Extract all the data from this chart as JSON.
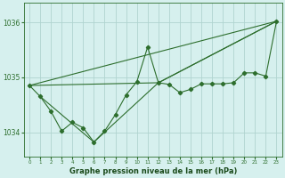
{
  "title": "Graphe pression niveau de la mer (hPa)",
  "background_color": "#d6f0ee",
  "grid_color": "#b0d4d0",
  "line_color": "#2d6e2d",
  "xlim": [
    -0.5,
    23.5
  ],
  "ylim": [
    1033.55,
    1036.35
  ],
  "yticks": [
    1034,
    1035,
    1036
  ],
  "xticks": [
    0,
    1,
    2,
    3,
    4,
    5,
    6,
    7,
    8,
    9,
    10,
    11,
    12,
    13,
    14,
    15,
    16,
    17,
    18,
    19,
    20,
    21,
    22,
    23
  ],
  "series_main": {
    "x": [
      0,
      1,
      2,
      3,
      4,
      5,
      6,
      7,
      8,
      9,
      10,
      11,
      12,
      13,
      14,
      15,
      16,
      17,
      18,
      19,
      20,
      21,
      22,
      23
    ],
    "y": [
      1034.85,
      1034.65,
      1034.38,
      1034.02,
      1034.18,
      1034.08,
      1033.82,
      1034.02,
      1034.32,
      1034.68,
      1034.92,
      1035.55,
      1034.9,
      1034.87,
      1034.72,
      1034.78,
      1034.88,
      1034.88,
      1034.88,
      1034.9,
      1035.08,
      1035.08,
      1035.02,
      1036.02
    ]
  },
  "series_trend1": {
    "x": [
      0,
      23
    ],
    "y": [
      1034.85,
      1036.02
    ]
  },
  "series_trend2": {
    "x": [
      1,
      6,
      12,
      23
    ],
    "y": [
      1034.65,
      1033.82,
      1034.9,
      1036.02
    ]
  },
  "series_trend3": {
    "x": [
      0,
      12,
      23
    ],
    "y": [
      1034.85,
      1034.9,
      1036.02
    ]
  }
}
